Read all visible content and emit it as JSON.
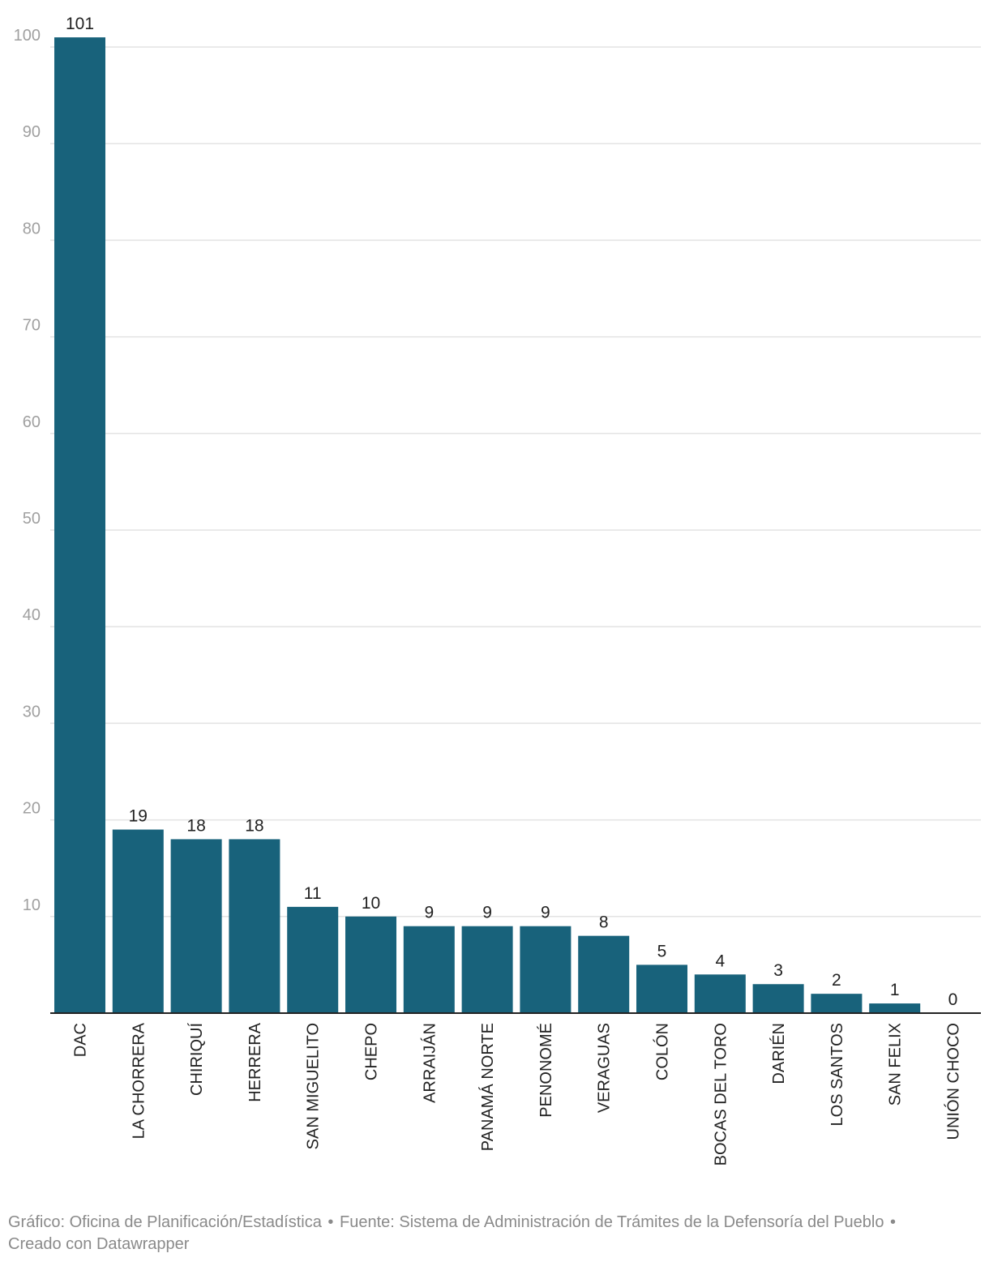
{
  "chart_data": {
    "type": "bar",
    "title": "",
    "xlabel": "",
    "ylabel": "",
    "ylim": [
      0,
      104
    ],
    "yticks": [
      10,
      20,
      30,
      40,
      50,
      60,
      70,
      80,
      90,
      100
    ],
    "grid": true,
    "value_labels": true,
    "bar_color": "#18627b",
    "categories": [
      "DAC",
      "LA CHORRERA",
      "CHIRIQUÍ",
      "HERRERA",
      "SAN MIGUELITO",
      "CHEPO",
      "ARRAIJÁN",
      "PANAMÁ NORTE",
      "PENONOMÉ",
      "VERAGUAS",
      "COLÓN",
      "BOCAS DEL TORO",
      "DARIÉN",
      "LOS SANTOS",
      "SAN FELIX",
      "UNIÓN CHOCO"
    ],
    "values": [
      101,
      19,
      18,
      18,
      11,
      10,
      9,
      9,
      9,
      8,
      5,
      4,
      3,
      2,
      1,
      0
    ]
  },
  "footer": {
    "credit": "Gráfico: Oficina de Planificación/Estadística",
    "separator": "•",
    "source": "Fuente: Sistema de Administración de Trámites de la Defensoría del Pueblo",
    "tool": "Creado con Datawrapper"
  },
  "colors": {
    "bar": "#18627b",
    "grid": "#e3e3e3",
    "axis": "#222222",
    "tick_label": "#a0a0a0",
    "value_label": "#222222",
    "footer_text": "#8a8a8a"
  }
}
